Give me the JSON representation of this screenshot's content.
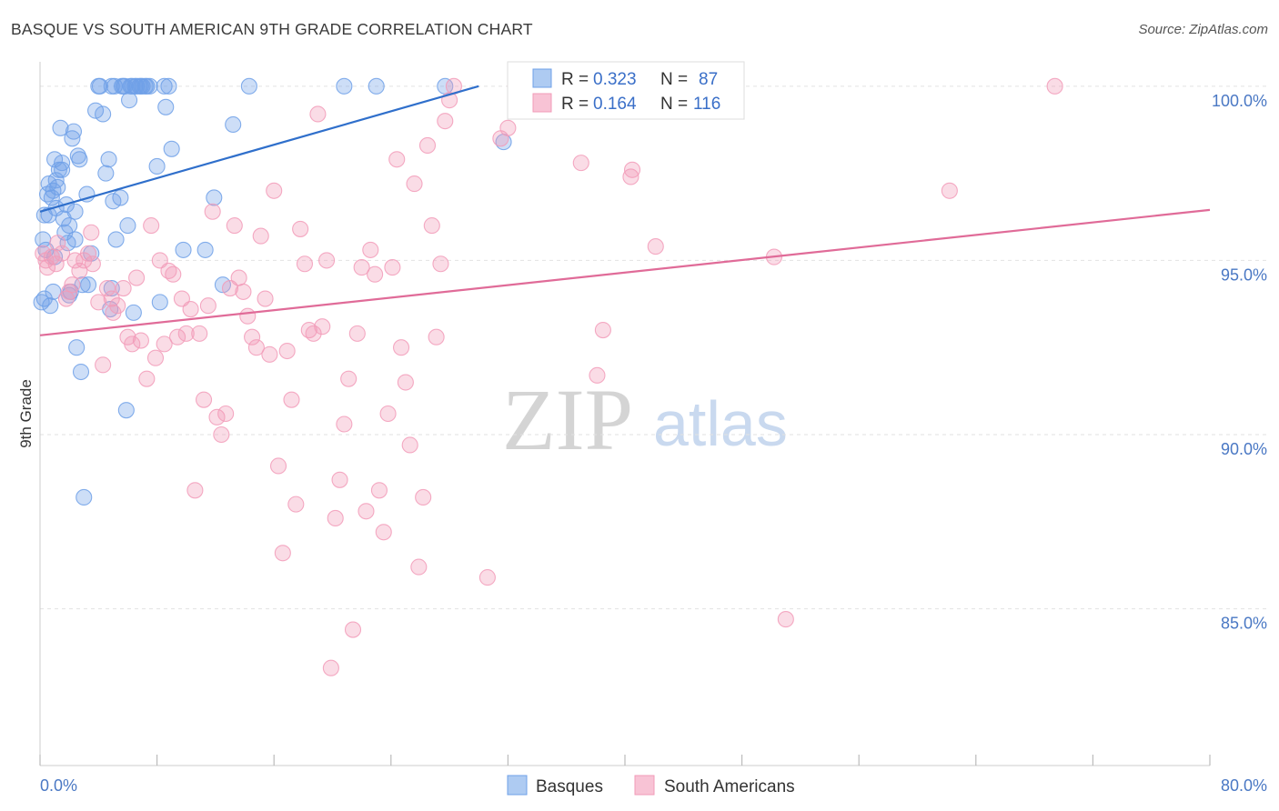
{
  "title": "BASQUE VS SOUTH AMERICAN 9TH GRADE CORRELATION CHART",
  "source": "Source: ZipAtlas.com",
  "watermark": {
    "zip": "ZIP",
    "atlas": "atlas"
  },
  "chart_data": {
    "type": "scatter",
    "ylabel": "9th Grade",
    "xlim": [
      0,
      80
    ],
    "ylim": [
      80.5,
      100.7
    ],
    "x_tick_labels": [
      "0.0%",
      "80.0%"
    ],
    "y_ticks": [
      {
        "value": 100,
        "label": "100.0%"
      },
      {
        "value": 95,
        "label": "95.0%"
      },
      {
        "value": 90,
        "label": "90.0%"
      },
      {
        "value": 85,
        "label": "85.0%"
      }
    ],
    "grid": true,
    "legend_position": "top-center",
    "series": [
      {
        "name": "Basques",
        "color": "#6fa0e8",
        "line_color": "#2f6fcb",
        "R": "0.323",
        "N": "87",
        "trend": [
          [
            0,
            96.4
          ],
          [
            30,
            100
          ]
        ],
        "points": [
          [
            0.1,
            93.8
          ],
          [
            0.2,
            95.6
          ],
          [
            0.3,
            96.3
          ],
          [
            0.4,
            95.3
          ],
          [
            0.5,
            96.9
          ],
          [
            0.6,
            97.2
          ],
          [
            0.7,
            93.7
          ],
          [
            0.8,
            96.8
          ],
          [
            0.9,
            97.0
          ],
          [
            1.0,
            97.9
          ],
          [
            1.1,
            97.3
          ],
          [
            1.2,
            97.1
          ],
          [
            1.3,
            97.6
          ],
          [
            1.4,
            98.8
          ],
          [
            1.5,
            97.8
          ],
          [
            1.6,
            96.2
          ],
          [
            1.7,
            95.8
          ],
          [
            1.8,
            96.6
          ],
          [
            1.9,
            95.5
          ],
          [
            2.0,
            96.0
          ],
          [
            2.1,
            94.1
          ],
          [
            2.2,
            98.5
          ],
          [
            2.3,
            98.7
          ],
          [
            2.4,
            96.4
          ],
          [
            2.5,
            92.5
          ],
          [
            2.6,
            98.0
          ],
          [
            2.7,
            97.9
          ],
          [
            2.8,
            91.8
          ],
          [
            2.9,
            94.3
          ],
          [
            3.0,
            88.2
          ],
          [
            3.2,
            96.9
          ],
          [
            3.5,
            95.2
          ],
          [
            3.8,
            99.3
          ],
          [
            4.0,
            100
          ],
          [
            4.1,
            100
          ],
          [
            4.3,
            99.2
          ],
          [
            4.5,
            97.5
          ],
          [
            4.7,
            97.9
          ],
          [
            4.9,
            94.2
          ],
          [
            5.0,
            96.7
          ],
          [
            5.2,
            95.6
          ],
          [
            5.5,
            96.8
          ],
          [
            5.7,
            100
          ],
          [
            5.8,
            100
          ],
          [
            5.9,
            90.7
          ],
          [
            6.0,
            96.0
          ],
          [
            6.1,
            99.6
          ],
          [
            6.3,
            100
          ],
          [
            6.4,
            93.5
          ],
          [
            6.5,
            100
          ],
          [
            6.6,
            100
          ],
          [
            6.8,
            100
          ],
          [
            7.0,
            100
          ],
          [
            7.5,
            100
          ],
          [
            8.0,
            97.7
          ],
          [
            8.2,
            93.8
          ],
          [
            8.5,
            100
          ],
          [
            8.6,
            99.4
          ],
          [
            8.8,
            100
          ],
          [
            9.0,
            98.2
          ],
          [
            9.8,
            95.3
          ],
          [
            11.3,
            95.3
          ],
          [
            11.9,
            96.8
          ],
          [
            12.5,
            94.3
          ],
          [
            13.2,
            98.9
          ],
          [
            14.3,
            100
          ],
          [
            20.8,
            100
          ],
          [
            23.0,
            100
          ],
          [
            27.7,
            100
          ],
          [
            31.7,
            98.4
          ],
          [
            1.0,
            95.1
          ],
          [
            2.0,
            94.0
          ],
          [
            4.8,
            93.6
          ],
          [
            3.3,
            94.3
          ],
          [
            6.9,
            100
          ],
          [
            5.1,
            100
          ],
          [
            4.9,
            100
          ],
          [
            7.2,
            100
          ],
          [
            0.6,
            96.3
          ],
          [
            1.5,
            97.6
          ],
          [
            2.4,
            95.6
          ],
          [
            1.1,
            96.5
          ],
          [
            0.9,
            94.1
          ],
          [
            5.6,
            100
          ],
          [
            6.2,
            100
          ],
          [
            7.3,
            100
          ],
          [
            0.3,
            93.9
          ]
        ]
      },
      {
        "name": "South Americans",
        "color": "#f29bb8",
        "line_color": "#e06b98",
        "R": "0.164",
        "N": "116",
        "trend": [
          [
            0,
            92.85
          ],
          [
            80,
            96.45
          ]
        ],
        "points": [
          [
            0.2,
            95.2
          ],
          [
            0.4,
            95.0
          ],
          [
            0.8,
            95.1
          ],
          [
            1.1,
            94.9
          ],
          [
            1.5,
            95.2
          ],
          [
            1.8,
            93.9
          ],
          [
            2.0,
            94.1
          ],
          [
            2.4,
            95.0
          ],
          [
            2.7,
            94.7
          ],
          [
            3.0,
            95.0
          ],
          [
            3.3,
            95.2
          ],
          [
            3.6,
            94.9
          ],
          [
            4.0,
            93.8
          ],
          [
            4.3,
            92.0
          ],
          [
            4.6,
            94.2
          ],
          [
            4.9,
            93.9
          ],
          [
            5.3,
            93.7
          ],
          [
            5.7,
            94.2
          ],
          [
            6.0,
            92.8
          ],
          [
            6.3,
            92.6
          ],
          [
            6.6,
            94.5
          ],
          [
            6.9,
            92.7
          ],
          [
            7.3,
            91.6
          ],
          [
            7.6,
            96.0
          ],
          [
            7.9,
            92.2
          ],
          [
            8.2,
            95.0
          ],
          [
            8.5,
            92.6
          ],
          [
            8.8,
            94.7
          ],
          [
            9.1,
            94.6
          ],
          [
            9.4,
            92.8
          ],
          [
            9.7,
            93.9
          ],
          [
            10.0,
            92.9
          ],
          [
            10.3,
            93.6
          ],
          [
            10.6,
            88.4
          ],
          [
            10.9,
            92.9
          ],
          [
            11.2,
            91.0
          ],
          [
            11.5,
            93.7
          ],
          [
            11.8,
            96.4
          ],
          [
            12.1,
            90.5
          ],
          [
            12.4,
            90.0
          ],
          [
            12.7,
            90.6
          ],
          [
            13.0,
            94.2
          ],
          [
            13.3,
            96.0
          ],
          [
            13.6,
            94.5
          ],
          [
            13.9,
            94.1
          ],
          [
            14.2,
            93.4
          ],
          [
            14.5,
            92.8
          ],
          [
            14.8,
            92.5
          ],
          [
            15.1,
            95.7
          ],
          [
            15.4,
            93.9
          ],
          [
            15.7,
            92.3
          ],
          [
            16.0,
            97.0
          ],
          [
            16.3,
            89.1
          ],
          [
            16.6,
            86.6
          ],
          [
            16.9,
            92.4
          ],
          [
            17.2,
            91.0
          ],
          [
            17.5,
            88.0
          ],
          [
            17.8,
            95.9
          ],
          [
            18.1,
            94.9
          ],
          [
            18.4,
            93.0
          ],
          [
            18.7,
            92.9
          ],
          [
            19.0,
            99.2
          ],
          [
            19.3,
            93.1
          ],
          [
            19.6,
            95.0
          ],
          [
            19.9,
            83.3
          ],
          [
            20.2,
            87.6
          ],
          [
            20.5,
            88.7
          ],
          [
            20.8,
            90.3
          ],
          [
            21.1,
            91.6
          ],
          [
            21.4,
            84.4
          ],
          [
            21.7,
            92.9
          ],
          [
            22.0,
            94.8
          ],
          [
            22.3,
            87.8
          ],
          [
            22.6,
            95.3
          ],
          [
            22.9,
            94.6
          ],
          [
            23.2,
            88.4
          ],
          [
            23.5,
            87.2
          ],
          [
            23.8,
            90.6
          ],
          [
            24.1,
            94.8
          ],
          [
            24.4,
            97.9
          ],
          [
            24.7,
            92.5
          ],
          [
            25.0,
            91.5
          ],
          [
            25.3,
            89.7
          ],
          [
            25.6,
            97.2
          ],
          [
            25.9,
            86.2
          ],
          [
            26.2,
            88.2
          ],
          [
            26.5,
            98.3
          ],
          [
            26.8,
            96.0
          ],
          [
            27.1,
            92.8
          ],
          [
            27.4,
            94.9
          ],
          [
            27.7,
            99.0
          ],
          [
            28.0,
            99.6
          ],
          [
            28.3,
            100
          ],
          [
            30.6,
            85.9
          ],
          [
            31.5,
            98.5
          ],
          [
            32.0,
            98.8
          ],
          [
            32.5,
            100
          ],
          [
            33.0,
            100
          ],
          [
            34.5,
            100
          ],
          [
            35.0,
            100
          ],
          [
            36.1,
            99.8
          ],
          [
            37.0,
            97.8
          ],
          [
            38.1,
            91.7
          ],
          [
            38.5,
            93.0
          ],
          [
            40.4,
            97.4
          ],
          [
            40.5,
            97.6
          ],
          [
            42.1,
            95.4
          ],
          [
            50.2,
            95.1
          ],
          [
            51.0,
            84.7
          ],
          [
            62.2,
            97.0
          ],
          [
            69.4,
            100
          ],
          [
            0.5,
            94.8
          ],
          [
            1.2,
            95.5
          ],
          [
            2.2,
            94.3
          ],
          [
            3.5,
            95.8
          ],
          [
            5.0,
            93.5
          ]
        ]
      }
    ]
  }
}
